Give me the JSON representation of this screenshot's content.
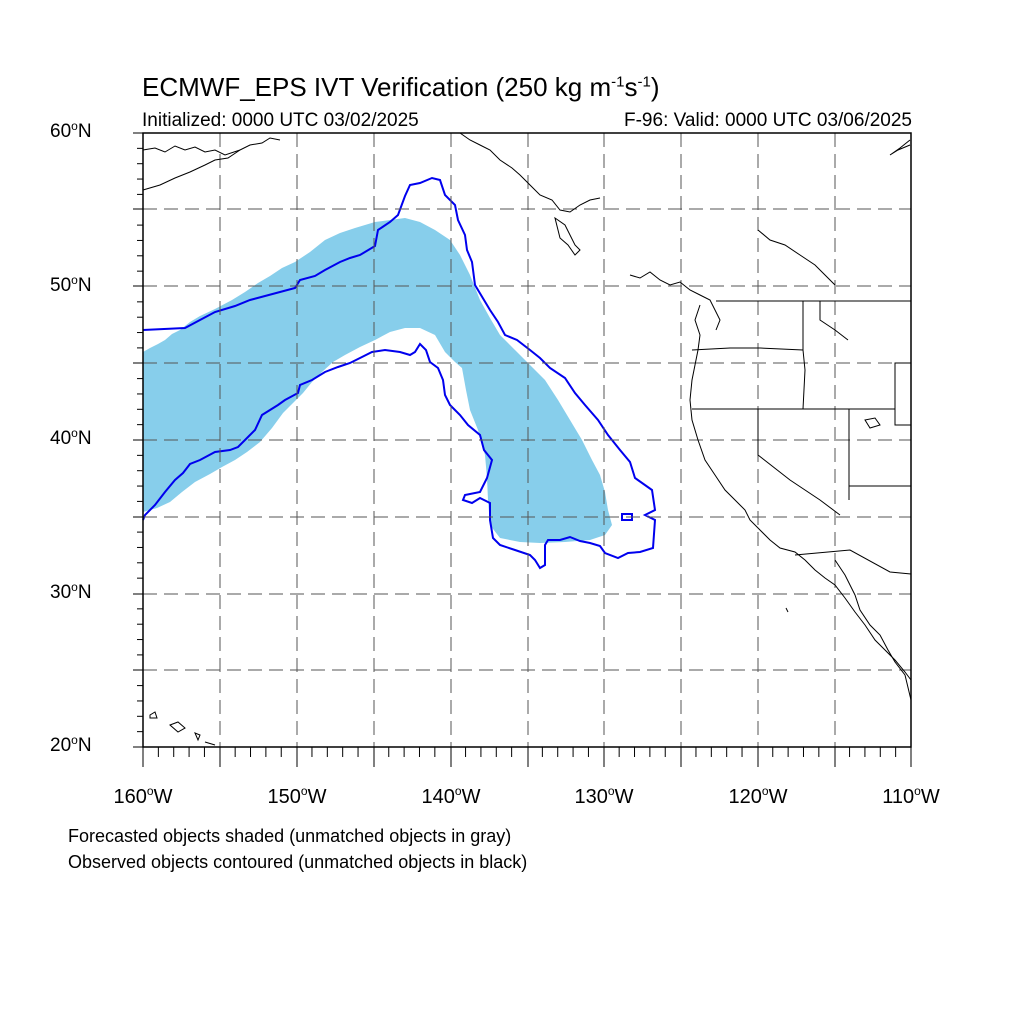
{
  "title": {
    "prefix": "ECMWF_EPS IVT Verification (250 kg m",
    "exp1": "-1",
    "mid": "s",
    "exp2": "-1",
    "suffix": ")"
  },
  "initialized": "Initialized: 0000 UTC 03/02/2025",
  "valid": "F-96: Valid: 0000 UTC 03/06/2025",
  "lat_labels": [
    {
      "val": "60",
      "hemi": "N"
    },
    {
      "val": "50",
      "hemi": "N"
    },
    {
      "val": "40",
      "hemi": "N"
    },
    {
      "val": "30",
      "hemi": "N"
    },
    {
      "val": "20",
      "hemi": "N"
    }
  ],
  "lon_labels": [
    {
      "val": "160",
      "hemi": "W"
    },
    {
      "val": "150",
      "hemi": "W"
    },
    {
      "val": "140",
      "hemi": "W"
    },
    {
      "val": "130",
      "hemi": "W"
    },
    {
      "val": "120",
      "hemi": "W"
    },
    {
      "val": "110",
      "hemi": "W"
    }
  ],
  "notes": {
    "forecast": "Forecasted objects shaded (unmatched objects in gray)",
    "observed": "Observed objects contoured (unmatched objects in black)"
  },
  "colors": {
    "forecast_fill": "#87ceeb",
    "observed_contour": "#0000ee",
    "coast": "#000000",
    "grid": "#555555"
  },
  "map_extent": {
    "lon_min": -160,
    "lon_max": -110,
    "lat_min": 20,
    "lat_max": 60
  }
}
